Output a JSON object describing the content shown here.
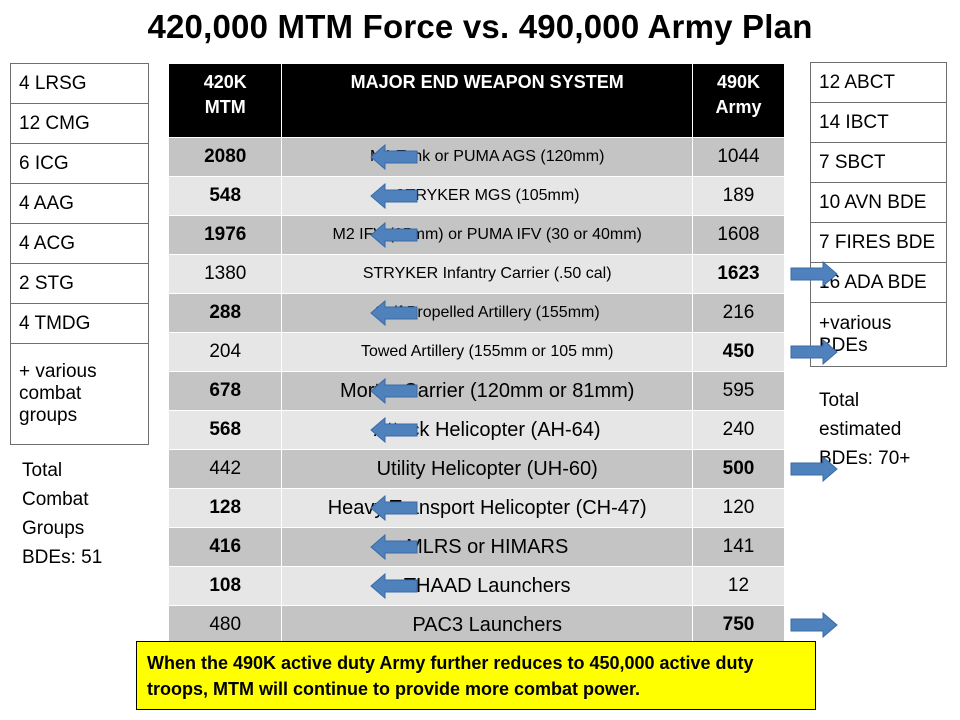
{
  "title": "420,000 MTM Force vs. 490,000 Army Plan",
  "left_table": [
    "4 LRSG",
    "12 CMG",
    "6 ICG",
    "4 AAG",
    "4 ACG",
    "2 STG",
    "4 TMDG",
    "+ various combat groups"
  ],
  "left_note": [
    "Total",
    "Combat",
    "Groups",
    "BDEs: 51"
  ],
  "right_table": [
    "12 ABCT",
    "14 IBCT",
    "7 SBCT",
    "10 AVN BDE",
    "7 FIRES BDE",
    "16 ADA BDE",
    "+various BDEs"
  ],
  "right_note": [
    "Total",
    "estimated",
    "BDEs: 70+"
  ],
  "header": {
    "mtm_line1": "420K",
    "mtm_line2": "MTM",
    "system": "MAJOR END WEAPON SYSTEM",
    "army_line1": "490K",
    "army_line2": "Army"
  },
  "rows": [
    {
      "mtm": "2080",
      "system": "M1 Tank or PUMA AGS (120mm)",
      "army": "1044"
    },
    {
      "mtm": "548",
      "system": "STRYKER MGS (105mm)",
      "army": "189"
    },
    {
      "mtm": "1976",
      "system": "M2 IFV (25mm) or PUMA IFV (30 or 40mm)",
      "army": "1608"
    },
    {
      "mtm": "1380",
      "system": "STRYKER Infantry Carrier (.50 cal)",
      "army": "1623"
    },
    {
      "mtm": "288",
      "system": "Self Propelled Artillery (155mm)",
      "army": "216"
    },
    {
      "mtm": "204",
      "system": "Towed Artillery (155mm or 105 mm)",
      "army": "450"
    },
    {
      "mtm": "678",
      "system": "Mortar Carrier (120mm or 81mm)",
      "army": "595"
    },
    {
      "mtm": "568",
      "system": "Attack Helicopter (AH-64)",
      "army": "240"
    },
    {
      "mtm": "442",
      "system": "Utility Helicopter (UH-60)",
      "army": "500"
    },
    {
      "mtm": "128",
      "system": "Heavy Transport Helicopter (CH-47)",
      "army": "120"
    },
    {
      "mtm": "416",
      "system": "MLRS or HIMARS",
      "army": "141"
    },
    {
      "mtm": "108",
      "system": "THAAD Launchers",
      "army": "12"
    },
    {
      "mtm": "480",
      "system": "PAC3 Launchers",
      "army": "750"
    }
  ],
  "note": "When the 490K active duty Army further reduces to 450,000 active duty troops, MTM will continue to provide more combat power.",
  "colors": {
    "arrow": "#4f81bd",
    "note_bg": "#ffff00",
    "header_bg": "#000000",
    "row_dark": "#c4c4c4",
    "row_light": "#e6e6e6"
  }
}
